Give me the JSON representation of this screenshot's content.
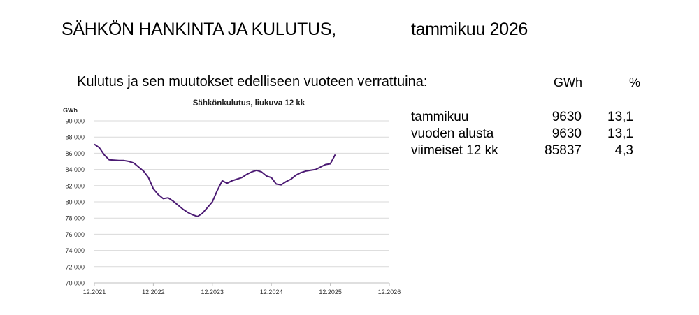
{
  "header": {
    "title": "SÄHKÖN HANKINTA JA KULUTUS,",
    "date": "tammikuu 2026"
  },
  "summary": {
    "heading": "Kulutus ja sen muutokset edelliseen vuoteen verrattuina:",
    "col_gwh": "GWh",
    "col_pct": "%",
    "rows": [
      {
        "label": "tammikuu",
        "gwh": "9630",
        "pct": "13,1"
      },
      {
        "label": "vuoden alusta",
        "gwh": "9630",
        "pct": "13,1"
      },
      {
        "label": "viimeiset 12 kk",
        "gwh": "85837",
        "pct": "4,3"
      }
    ]
  },
  "chart_data": {
    "type": "line",
    "title": "Sähkönkulutus, liukuva 12 kk",
    "ylabel": "GWh",
    "xlabel": "",
    "ylim": [
      70000,
      90000
    ],
    "yticks": [
      70000,
      72000,
      74000,
      76000,
      78000,
      80000,
      82000,
      84000,
      86000,
      88000,
      90000
    ],
    "ytick_labels": [
      "70 000",
      "72 000",
      "74 000",
      "76 000",
      "78 000",
      "80 000",
      "82 000",
      "84 000",
      "86 000",
      "88 000",
      "90 000"
    ],
    "xticks": [
      "12.2021",
      "12.2022",
      "12.2023",
      "12.2024",
      "12.2025",
      "12.2026"
    ],
    "grid": true,
    "line_color": "#4b1a73",
    "series": [
      {
        "x_start": "12.2021",
        "values": [
          87100,
          86700,
          85800,
          85200,
          85150,
          85100,
          85100,
          85000,
          84800,
          84300,
          83800,
          83000,
          81600,
          80900,
          80400,
          80500,
          80100,
          79600,
          79100,
          78700,
          78400,
          78200,
          78600,
          79300,
          80000,
          81400,
          82600,
          82300,
          82600,
          82800,
          83000,
          83400,
          83700,
          83900,
          83700,
          83200,
          83000,
          82200,
          82100,
          82500,
          82800,
          83300,
          83600,
          83800,
          83900,
          84000,
          84300,
          84600,
          84700,
          85837
        ]
      }
    ]
  }
}
